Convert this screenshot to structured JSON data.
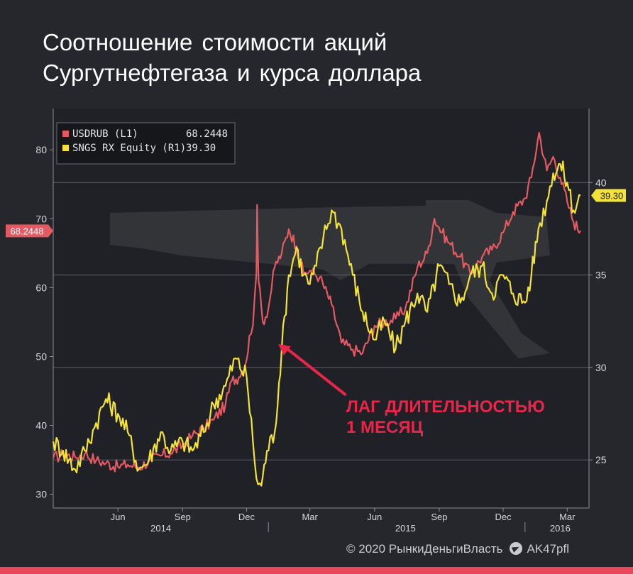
{
  "title": {
    "line1": "Соотношение стоимости акций",
    "line2": "Сургутнефтегаза и курса доллара"
  },
  "footer": {
    "copyright": "© 2020 РынкиДеньгиВласть",
    "telegram_icon": "telegram-icon",
    "handle": "AK47pfl"
  },
  "chart_data": {
    "type": "line",
    "colors": {
      "background": "#1f2126",
      "usdrub": "#e35a62",
      "sngs": "#f3e23a",
      "grid": "#5d6068",
      "annotation": "#e8264a",
      "watermark": "#34363b"
    },
    "legend": {
      "placement": "top-left",
      "entries": [
        {
          "name": "USDRUB (L1)",
          "value": "68.2448"
        },
        {
          "name": "SNGS RX Equity (R1)",
          "value": "39.30"
        }
      ]
    },
    "y_left": {
      "range": [
        28,
        86
      ],
      "ticks": [
        "30",
        "40",
        "50",
        "60",
        "70",
        "80"
      ],
      "last_label": "68.2448",
      "last_value": 68.2448
    },
    "y_right": {
      "range": [
        22.4,
        44
      ],
      "ticks": [
        "25",
        "30",
        "35",
        "40"
      ],
      "last_label": "39.30",
      "last_value": 39.3
    },
    "x_axis": {
      "range": [
        "2014-03-01",
        "2016-04-01"
      ],
      "month_ticks": [
        {
          "label": "Jun",
          "date": "2014-06-01"
        },
        {
          "label": "Sep",
          "date": "2014-09-01"
        },
        {
          "label": "Dec",
          "date": "2014-12-01"
        },
        {
          "label": "Mar",
          "date": "2015-03-01"
        },
        {
          "label": "Jun",
          "date": "2015-06-01"
        },
        {
          "label": "Sep",
          "date": "2015-09-01"
        },
        {
          "label": "Dec",
          "date": "2015-12-01"
        },
        {
          "label": "Mar",
          "date": "2016-03-01"
        }
      ],
      "year_labels": [
        {
          "label": "2014",
          "date": "2014-08-01"
        },
        {
          "label": "2015",
          "date": "2015-07-15"
        },
        {
          "label": "2016",
          "date": "2016-02-20"
        }
      ],
      "year_separators": [
        "2015-01-01",
        "2016-01-01"
      ]
    },
    "annotation": {
      "line1": "ЛАГ ДЛИТЕЛЬНОСТЬЮ",
      "line2": "1 МЕСЯЦ",
      "arrow_from": {
        "date": "2015-04-20",
        "value": 44.5
      },
      "arrow_to": {
        "date": "2015-01-15",
        "value": 51.8
      }
    },
    "series": [
      {
        "name": "USDRUB (L1)",
        "axis": "left",
        "points": [
          [
            "2014-03-01",
            35.2
          ],
          [
            "2014-03-15",
            35.8
          ],
          [
            "2014-04-01",
            35.4
          ],
          [
            "2014-04-15",
            35.9
          ],
          [
            "2014-05-01",
            34.9
          ],
          [
            "2014-05-15",
            34.5
          ],
          [
            "2014-06-01",
            34.0
          ],
          [
            "2014-06-15",
            34.3
          ],
          [
            "2014-07-01",
            33.9
          ],
          [
            "2014-07-15",
            34.8
          ],
          [
            "2014-08-01",
            35.6
          ],
          [
            "2014-08-15",
            36.0
          ],
          [
            "2014-09-01",
            37.1
          ],
          [
            "2014-09-15",
            38.5
          ],
          [
            "2014-10-01",
            39.6
          ],
          [
            "2014-10-15",
            40.8
          ],
          [
            "2014-11-01",
            43.0
          ],
          [
            "2014-11-10",
            46.5
          ],
          [
            "2014-11-20",
            47.0
          ],
          [
            "2014-12-01",
            49.5
          ],
          [
            "2014-12-05",
            53.0
          ],
          [
            "2014-12-10",
            54.5
          ],
          [
            "2014-12-15",
            62.0
          ],
          [
            "2014-12-16",
            72.0
          ],
          [
            "2014-12-18",
            61.0
          ],
          [
            "2014-12-24",
            55.0
          ],
          [
            "2015-01-01",
            57.0
          ],
          [
            "2015-01-10",
            63.0
          ],
          [
            "2015-01-20",
            65.0
          ],
          [
            "2015-01-30",
            68.5
          ],
          [
            "2015-02-10",
            66.0
          ],
          [
            "2015-02-20",
            62.0
          ],
          [
            "2015-03-01",
            62.5
          ],
          [
            "2015-03-15",
            61.5
          ],
          [
            "2015-04-01",
            57.5
          ],
          [
            "2015-04-15",
            52.0
          ],
          [
            "2015-05-01",
            51.0
          ],
          [
            "2015-05-15",
            50.5
          ],
          [
            "2015-06-01",
            54.5
          ],
          [
            "2015-06-15",
            55.0
          ],
          [
            "2015-07-01",
            55.5
          ],
          [
            "2015-07-15",
            57.0
          ],
          [
            "2015-08-01",
            63.0
          ],
          [
            "2015-08-15",
            65.0
          ],
          [
            "2015-08-25",
            70.0
          ],
          [
            "2015-09-05",
            68.0
          ],
          [
            "2015-09-15",
            66.5
          ],
          [
            "2015-10-01",
            64.5
          ],
          [
            "2015-10-15",
            62.0
          ],
          [
            "2015-11-01",
            64.5
          ],
          [
            "2015-11-15",
            65.5
          ],
          [
            "2015-12-01",
            68.0
          ],
          [
            "2015-12-15",
            71.0
          ],
          [
            "2016-01-01",
            73.0
          ],
          [
            "2016-01-10",
            76.0
          ],
          [
            "2016-01-21",
            82.5
          ],
          [
            "2016-02-01",
            77.0
          ],
          [
            "2016-02-10",
            79.0
          ],
          [
            "2016-02-20",
            76.0
          ],
          [
            "2016-03-01",
            72.5
          ],
          [
            "2016-03-10",
            69.5
          ],
          [
            "2016-03-20",
            68.2448
          ]
        ]
      },
      {
        "name": "SNGS RX Equity (R1)",
        "axis": "right",
        "points": [
          [
            "2014-03-01",
            26.0
          ],
          [
            "2014-03-15",
            25.5
          ],
          [
            "2014-04-01",
            24.5
          ],
          [
            "2014-04-15",
            25.5
          ],
          [
            "2014-05-01",
            27.0
          ],
          [
            "2014-05-15",
            28.3
          ],
          [
            "2014-06-01",
            27.5
          ],
          [
            "2014-06-15",
            26.5
          ],
          [
            "2014-07-01",
            24.5
          ],
          [
            "2014-07-15",
            25.0
          ],
          [
            "2014-08-01",
            26.5
          ],
          [
            "2014-08-15",
            25.5
          ],
          [
            "2014-09-01",
            26.0
          ],
          [
            "2014-09-15",
            25.5
          ],
          [
            "2014-10-01",
            26.5
          ],
          [
            "2014-10-15",
            28.0
          ],
          [
            "2014-11-01",
            29.0
          ],
          [
            "2014-11-15",
            30.5
          ],
          [
            "2014-12-01",
            29.5
          ],
          [
            "2014-12-10",
            26.0
          ],
          [
            "2014-12-15",
            24.0
          ],
          [
            "2014-12-22",
            23.6
          ],
          [
            "2014-12-30",
            25.5
          ],
          [
            "2015-01-10",
            26.5
          ],
          [
            "2015-01-20",
            31.0
          ],
          [
            "2015-01-30",
            35.0
          ],
          [
            "2015-02-10",
            36.5
          ],
          [
            "2015-02-20",
            35.0
          ],
          [
            "2015-03-01",
            34.5
          ],
          [
            "2015-03-10",
            35.5
          ],
          [
            "2015-03-20",
            37.0
          ],
          [
            "2015-04-01",
            38.5
          ],
          [
            "2015-04-15",
            37.5
          ],
          [
            "2015-05-01",
            35.0
          ],
          [
            "2015-05-15",
            33.0
          ],
          [
            "2015-06-01",
            31.5
          ],
          [
            "2015-06-15",
            32.5
          ],
          [
            "2015-07-01",
            31.0
          ],
          [
            "2015-07-15",
            32.5
          ],
          [
            "2015-08-01",
            34.0
          ],
          [
            "2015-08-15",
            33.0
          ],
          [
            "2015-09-01",
            35.5
          ],
          [
            "2015-09-15",
            34.5
          ],
          [
            "2015-10-01",
            33.5
          ],
          [
            "2015-10-15",
            35.0
          ],
          [
            "2015-11-01",
            35.5
          ],
          [
            "2015-11-15",
            34.0
          ],
          [
            "2015-12-01",
            35.0
          ],
          [
            "2015-12-15",
            34.0
          ],
          [
            "2016-01-01",
            33.5
          ],
          [
            "2016-01-10",
            35.0
          ],
          [
            "2016-01-20",
            37.5
          ],
          [
            "2016-02-01",
            39.0
          ],
          [
            "2016-02-10",
            40.5
          ],
          [
            "2016-02-20",
            41.0
          ],
          [
            "2016-03-01",
            40.0
          ],
          [
            "2016-03-10",
            38.5
          ],
          [
            "2016-03-20",
            39.3
          ]
        ]
      }
    ]
  }
}
